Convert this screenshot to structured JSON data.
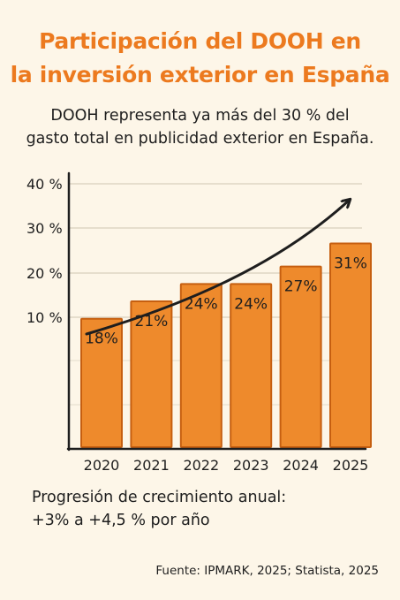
{
  "title_line1": "Participación del DOOH en",
  "title_line2": "la inversión exterior en España",
  "subtitle_line1": "DOOH representa ya más del 30 % del",
  "subtitle_line2": "gasto total en publicidad exterior en España.",
  "chart_data": {
    "type": "bar",
    "categories": [
      "2020",
      "2021",
      "2022",
      "2023",
      "2024",
      "2025"
    ],
    "values": [
      18,
      21,
      24,
      24,
      27,
      31
    ],
    "value_labels": [
      "18%",
      "21%",
      "24%",
      "24%",
      "27%",
      "31%"
    ],
    "y_ticks": [
      "40 %",
      "30 %",
      "20 %",
      "10 %"
    ],
    "title": "Participación del DOOH en la inversión exterior en España",
    "xlabel": "",
    "ylabel": "",
    "ylim": [
      0,
      40
    ],
    "grid": true,
    "bar_color": "#ee8a2c",
    "bar_edge_color": "#c65f10",
    "trend_arrow": true
  },
  "footnote_line1": "Progresión de crecimiento anual:",
  "footnote_line2": "+3% a +4,5 % por año",
  "source": "Fuente: IPMARK, 2025; Statista, 2025",
  "colors": {
    "accent": "#ec7a1f",
    "background": "#fdf6e8",
    "text": "#1e1e1e"
  }
}
